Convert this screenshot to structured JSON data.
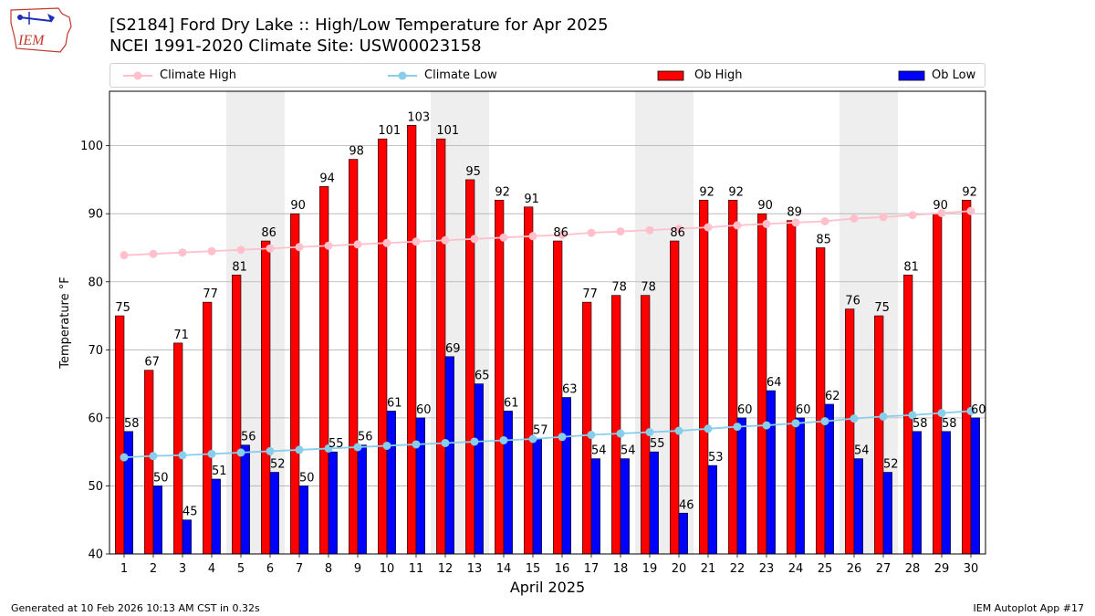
{
  "logo": {
    "text": "IEM"
  },
  "title_line1": "[S2184] Ford Dry Lake :: High/Low Temperature for Apr 2025",
  "title_line2": "NCEI 1991-2020 Climate Site: USW00023158",
  "footer_left": "Generated at 10 Feb 2026 10:13 AM CST in 0.32s",
  "footer_right": "IEM Autoplot App #17",
  "legend": [
    {
      "label": "Climate High",
      "kind": "line",
      "color": "#ffc0cb"
    },
    {
      "label": "Climate Low",
      "kind": "line",
      "color": "#87ceeb"
    },
    {
      "label": "Ob High",
      "kind": "bar",
      "color": "#ff0000"
    },
    {
      "label": "Ob Low",
      "kind": "bar",
      "color": "#0000ff"
    }
  ],
  "chart_data": {
    "type": "bar",
    "xlabel": "April 2025",
    "ylabel": "Temperature °F",
    "ylim": [
      40,
      108
    ],
    "yticks": [
      40,
      50,
      60,
      70,
      80,
      90,
      100
    ],
    "categories": [
      1,
      2,
      3,
      4,
      5,
      6,
      7,
      8,
      9,
      10,
      11,
      12,
      13,
      14,
      15,
      16,
      17,
      18,
      19,
      20,
      21,
      22,
      23,
      24,
      25,
      26,
      27,
      28,
      29,
      30
    ],
    "weekend_shading": [
      [
        5,
        6
      ],
      [
        12,
        13
      ],
      [
        19,
        20
      ],
      [
        26,
        27
      ]
    ],
    "grid": "horizontal",
    "series": [
      {
        "name": "Ob High",
        "kind": "bar",
        "color": "#ff0000",
        "values": [
          75,
          67,
          71,
          77,
          81,
          86,
          90,
          94,
          98,
          101,
          103,
          101,
          95,
          92,
          91,
          86,
          77,
          78,
          78,
          86,
          92,
          92,
          90,
          89,
          85,
          76,
          75,
          81,
          90,
          92
        ]
      },
      {
        "name": "Ob Low",
        "kind": "bar",
        "color": "#0000ff",
        "values": [
          58,
          50,
          45,
          51,
          56,
          52,
          50,
          55,
          56,
          61,
          60,
          69,
          65,
          61,
          57,
          63,
          54,
          54,
          55,
          46,
          53,
          60,
          64,
          60,
          62,
          54,
          52,
          58,
          58,
          60
        ]
      },
      {
        "name": "Climate High",
        "kind": "line",
        "color": "#ffc0cb",
        "values": [
          83.9,
          84.1,
          84.3,
          84.5,
          84.7,
          84.9,
          85.1,
          85.3,
          85.5,
          85.7,
          85.9,
          86.1,
          86.3,
          86.5,
          86.7,
          86.9,
          87.2,
          87.4,
          87.6,
          87.8,
          88.0,
          88.3,
          88.5,
          88.7,
          88.9,
          89.3,
          89.5,
          89.8,
          90.1,
          90.4
        ]
      },
      {
        "name": "Climate Low",
        "kind": "line",
        "color": "#87ceeb",
        "values": [
          54.2,
          54.4,
          54.5,
          54.7,
          54.9,
          55.1,
          55.3,
          55.5,
          55.7,
          55.9,
          56.1,
          56.3,
          56.5,
          56.7,
          56.9,
          57.2,
          57.5,
          57.7,
          57.9,
          58.1,
          58.4,
          58.7,
          58.9,
          59.2,
          59.5,
          59.9,
          60.2,
          60.4,
          60.7,
          61.0
        ]
      }
    ]
  }
}
